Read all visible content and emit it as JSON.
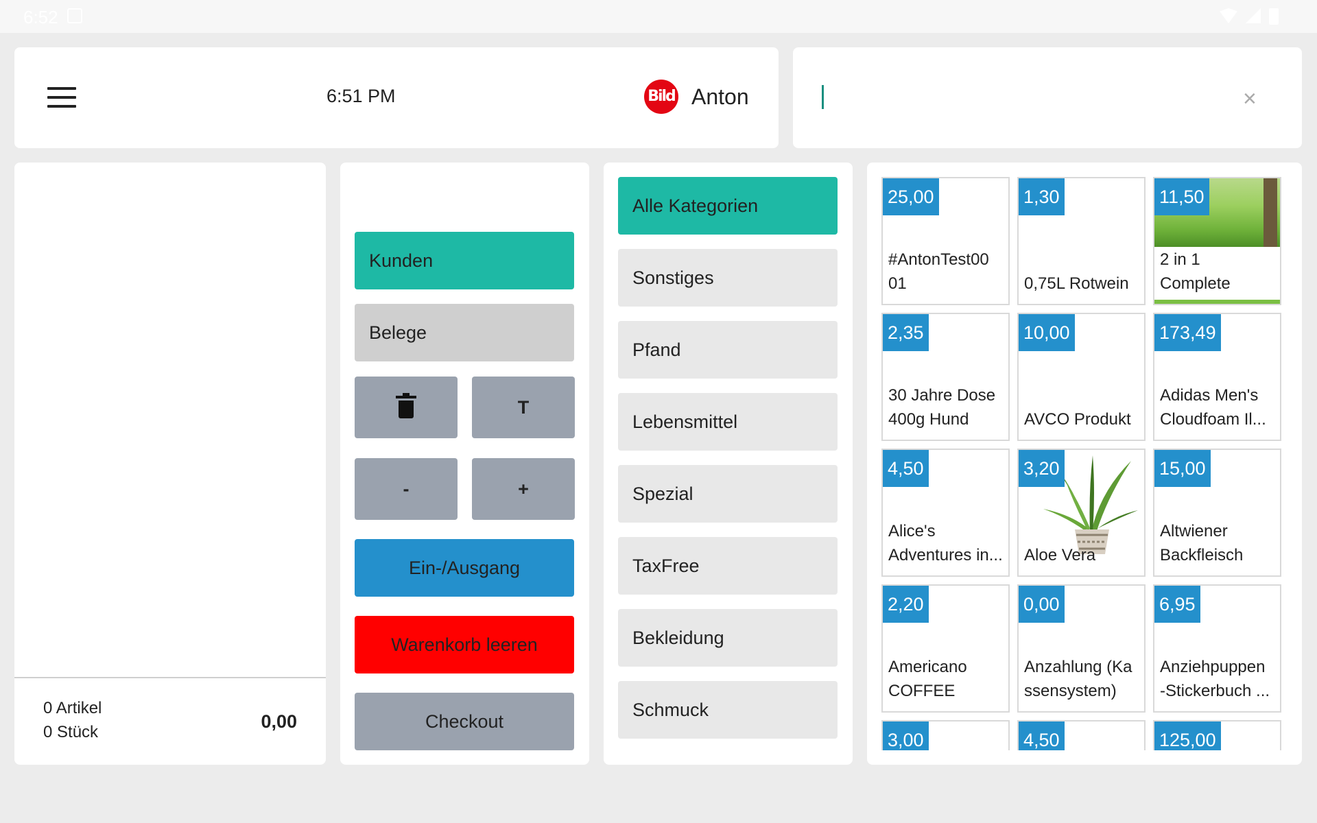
{
  "status_bar": {
    "time": "6:52"
  },
  "header": {
    "menu_icon": "hamburger-menu-icon",
    "time": "6:51 PM",
    "logo_text": "Bild",
    "user_name": "Anton"
  },
  "search": {
    "value": "",
    "clear_icon": "close-icon",
    "clear_glyph": "×"
  },
  "cart": {
    "articles": "0 Artikel",
    "pieces": "0 Stück",
    "total": "0,00"
  },
  "actions": {
    "kunden": "Kunden",
    "belege": "Belege",
    "delete_icon": "trash-icon",
    "text": "T",
    "minus": "-",
    "plus": "+",
    "ein_ausgang": "Ein-/Ausgang",
    "warenkorb_leeren": "Warenkorb leeren",
    "checkout": "Checkout"
  },
  "categories": [
    {
      "label": "Alle Kategorien",
      "active": true
    },
    {
      "label": "Sonstiges"
    },
    {
      "label": "Pfand"
    },
    {
      "label": "Lebensmittel"
    },
    {
      "label": "Spezial"
    },
    {
      "label": "TaxFree"
    },
    {
      "label": "Bekleidung"
    },
    {
      "label": "Schmuck"
    }
  ],
  "products": [
    {
      "price": "25,00",
      "name_line1": "#AntonTest00",
      "name_line2": "01"
    },
    {
      "price": "1,30",
      "name_line1": "",
      "name_line2": "0,75L Rotwein"
    },
    {
      "price": "11,50",
      "name_line1": "2 in 1",
      "name_line2": "Complete",
      "image": "grass-meadow"
    },
    {
      "price": "2,35",
      "name_line1": "30 Jahre Dose",
      "name_line2": "400g Hund"
    },
    {
      "price": "10,00",
      "name_line1": "",
      "name_line2": "AVCO Produkt"
    },
    {
      "price": "173,49",
      "name_line1": "Adidas Men's",
      "name_line2": "Cloudfoam Il..."
    },
    {
      "price": "4,50",
      "name_line1": "Alice's",
      "name_line2": "Adventures in..."
    },
    {
      "price": "3,20",
      "name_line1": "",
      "name_line2": "Aloe Vera",
      "image": "aloe-plant"
    },
    {
      "price": "15,00",
      "name_line1": "Altwiener",
      "name_line2": "Backfleisch"
    },
    {
      "price": "2,20",
      "name_line1": "Americano",
      "name_line2": "COFFEE"
    },
    {
      "price": "0,00",
      "name_line1": "Anzahlung (Ka",
      "name_line2": "ssensystem)"
    },
    {
      "price": "6,95",
      "name_line1": "Anziehpuppen",
      "name_line2": "-Stickerbuch ..."
    },
    {
      "price": "3,00",
      "name_line1": "",
      "name_line2": ""
    },
    {
      "price": "4,50",
      "name_line1": "",
      "name_line2": ""
    },
    {
      "price": "125,00",
      "name_line1": "",
      "name_line2": ""
    }
  ]
}
